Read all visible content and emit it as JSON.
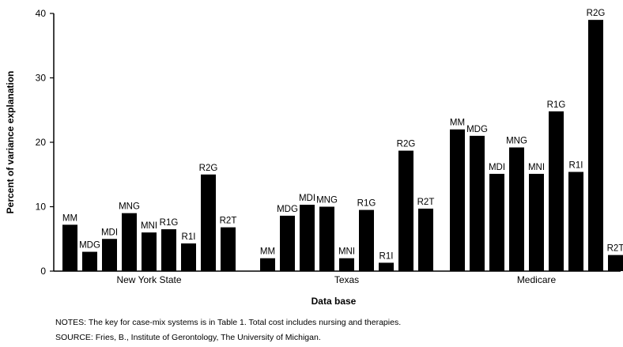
{
  "chart_data": {
    "type": "bar",
    "title": "",
    "xlabel": "Data base",
    "ylabel": "Percent of variance explanation",
    "ylim": [
      0,
      40
    ],
    "yticks": [
      "0",
      "10",
      "20",
      "30",
      "40"
    ],
    "grid": false,
    "groups": [
      {
        "name": "New York State",
        "bars": [
          {
            "label": "MM",
            "value": 7.2
          },
          {
            "label": "MDG",
            "value": 3.0
          },
          {
            "label": "MDI",
            "value": 5.0
          },
          {
            "label": "MNG",
            "value": 9.0
          },
          {
            "label": "MNI",
            "value": 6.0
          },
          {
            "label": "R1G",
            "value": 6.5
          },
          {
            "label": "R1I",
            "value": 4.3
          },
          {
            "label": "R2G",
            "value": 15.0
          },
          {
            "label": "R2T",
            "value": 6.8
          }
        ]
      },
      {
        "name": "Texas",
        "bars": [
          {
            "label": "MM",
            "value": 2.0
          },
          {
            "label": "MDG",
            "value": 8.6
          },
          {
            "label": "MDI",
            "value": 10.3
          },
          {
            "label": "MNG",
            "value": 10.0
          },
          {
            "label": "MNI",
            "value": 2.0
          },
          {
            "label": "R1G",
            "value": 9.5
          },
          {
            "label": "R1I",
            "value": 1.3
          },
          {
            "label": "R2G",
            "value": 18.7
          },
          {
            "label": "R2T",
            "value": 9.7
          }
        ]
      },
      {
        "name": "Medicare",
        "bars": [
          {
            "label": "MM",
            "value": 22.0
          },
          {
            "label": "MDG",
            "value": 21.0
          },
          {
            "label": "MDI",
            "value": 15.1
          },
          {
            "label": "MNG",
            "value": 19.2
          },
          {
            "label": "MNI",
            "value": 15.1
          },
          {
            "label": "R1G",
            "value": 24.8
          },
          {
            "label": "R1I",
            "value": 15.4
          },
          {
            "label": "R2G",
            "value": 39.0
          },
          {
            "label": "R2T",
            "value": 2.5
          }
        ]
      }
    ]
  },
  "notes": {
    "line1": "NOTES: The key for case-mix systems is in Table 1. Total cost includes nursing and therapies.",
    "line2": "SOURCE: Fries, B., Institute of Gerontology, The University of Michigan."
  }
}
